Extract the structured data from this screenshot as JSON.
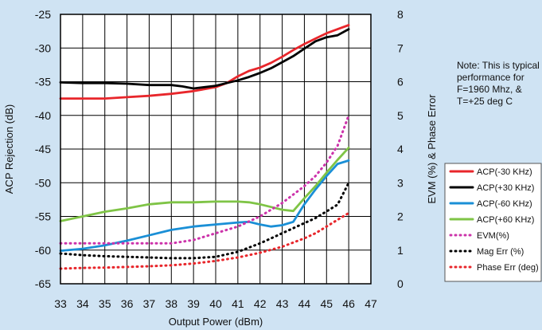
{
  "chart_data": {
    "type": "line",
    "xlabel": "Output Power  (dBm)",
    "ylabel_left": "ACP Rejection (dB)",
    "ylabel_right": "EVM (%) & Phase Error",
    "x_ticks": [
      33,
      34,
      35,
      36,
      37,
      38,
      39,
      40,
      41,
      42,
      43,
      44,
      45,
      46,
      47
    ],
    "y_left_ticks": [
      -25,
      -30,
      -35,
      -40,
      -45,
      -50,
      -55,
      -60,
      -65
    ],
    "y_right_ticks": [
      8,
      7,
      6,
      5,
      4,
      3,
      2,
      1,
      0
    ],
    "xlim": [
      33,
      47
    ],
    "ylim_left": [
      -65,
      -25
    ],
    "ylim_right": [
      0,
      8
    ],
    "grid": true,
    "legend_position": "right",
    "note": [
      "Note: This is typical",
      "performance for",
      "F=1960 Mhz, &",
      "T=+25 deg C"
    ],
    "series": [
      {
        "name": "ACP(-30 KHz)",
        "axis": "left",
        "color": "#e8262b",
        "dashed": false,
        "x": [
          33,
          34,
          35,
          36,
          37,
          38,
          39,
          40,
          40.5,
          41,
          41.5,
          42,
          42.5,
          43,
          43.5,
          44,
          44.5,
          45,
          45.5,
          46
        ],
        "y": [
          -37.5,
          -37.5,
          -37.5,
          -37.3,
          -37.1,
          -36.8,
          -36.4,
          -35.8,
          -35.2,
          -34.2,
          -33.4,
          -32.9,
          -32.2,
          -31.3,
          -30.3,
          -29.4,
          -28.6,
          -27.8,
          -27.2,
          -26.6
        ]
      },
      {
        "name": "ACP(+30 KHz)",
        "axis": "left",
        "color": "#000000",
        "dashed": false,
        "x": [
          33,
          34,
          35,
          36,
          37,
          38,
          38.5,
          39,
          39.5,
          40,
          40.5,
          41,
          41.5,
          42,
          42.5,
          43,
          43.5,
          44,
          44.5,
          45,
          45.5,
          46
        ],
        "y": [
          -35.1,
          -35.2,
          -35.2,
          -35.3,
          -35.5,
          -35.5,
          -35.7,
          -36.0,
          -35.8,
          -35.6,
          -35.2,
          -34.8,
          -34.3,
          -33.7,
          -33.0,
          -32.1,
          -31.2,
          -30.1,
          -29.0,
          -28.4,
          -28.1,
          -27.2
        ]
      },
      {
        "name": "ACP(-60 KHz)",
        "axis": "left",
        "color": "#1a8fd6",
        "dashed": false,
        "x": [
          33,
          34,
          35,
          36,
          37,
          38,
          39,
          40,
          41,
          41.5,
          42,
          42.5,
          43,
          43.5,
          44,
          44.5,
          45,
          45.5,
          46
        ],
        "y": [
          -60.1,
          -59.8,
          -59.3,
          -58.6,
          -57.8,
          -57.0,
          -56.5,
          -56.2,
          -55.9,
          -55.8,
          -56.2,
          -56.5,
          -56.3,
          -55.8,
          -53.2,
          -51.0,
          -49.0,
          -47.2,
          -46.7
        ]
      },
      {
        "name": "ACP(+60 KHz)",
        "axis": "left",
        "color": "#7fc446",
        "dashed": false,
        "x": [
          33,
          34,
          35,
          36,
          37,
          38,
          39,
          40,
          41,
          41.5,
          42,
          42.5,
          43,
          43.5,
          44,
          44.5,
          45,
          45.5,
          46
        ],
        "y": [
          -55.7,
          -55.0,
          -54.3,
          -53.8,
          -53.2,
          -52.9,
          -52.9,
          -52.8,
          -52.8,
          -52.9,
          -53.2,
          -53.6,
          -54.0,
          -54.2,
          -52.3,
          -50.5,
          -48.5,
          -46.6,
          -44.8
        ]
      },
      {
        "name": "EVM(%)",
        "axis": "right",
        "color": "#cc33aa",
        "dashed": true,
        "x": [
          33,
          34,
          35,
          36,
          37,
          38,
          39,
          40,
          41,
          42,
          43,
          44,
          44.5,
          45,
          45.5,
          46
        ],
        "y": [
          1.2,
          1.2,
          1.2,
          1.2,
          1.2,
          1.2,
          1.3,
          1.5,
          1.7,
          2.0,
          2.4,
          2.9,
          3.2,
          3.6,
          4.1,
          5.0
        ]
      },
      {
        "name": "Mag Err (%)",
        "axis": "right",
        "color": "#000000",
        "dashed": true,
        "x": [
          33,
          34,
          35,
          36,
          37,
          38,
          39,
          40,
          41,
          42,
          43,
          44,
          44.5,
          45,
          45.5,
          46
        ],
        "y": [
          0.9,
          0.85,
          0.82,
          0.8,
          0.78,
          0.76,
          0.76,
          0.8,
          0.95,
          1.2,
          1.5,
          1.8,
          1.95,
          2.15,
          2.35,
          3.0
        ]
      },
      {
        "name": "Phase Err (deg)",
        "axis": "right",
        "color": "#e8262b",
        "dashed": true,
        "x": [
          33,
          34,
          35,
          36,
          37,
          38,
          39,
          40,
          41,
          42,
          43,
          44,
          44.5,
          45,
          45.5,
          46
        ],
        "y": [
          0.45,
          0.47,
          0.48,
          0.5,
          0.52,
          0.55,
          0.6,
          0.68,
          0.78,
          0.92,
          1.1,
          1.35,
          1.5,
          1.7,
          1.9,
          2.1
        ]
      }
    ]
  }
}
